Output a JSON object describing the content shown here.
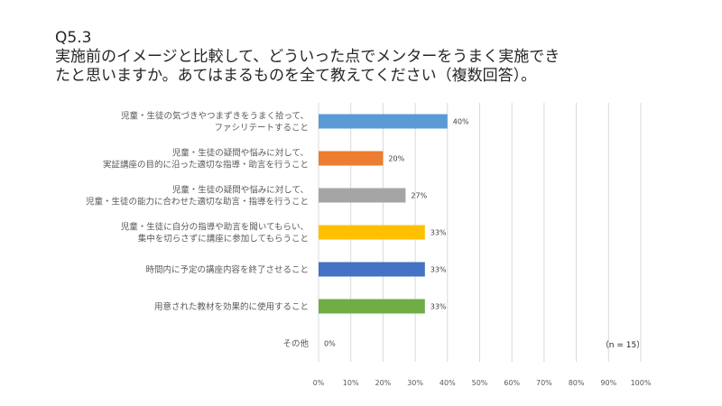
{
  "header": {
    "question_number": "Q5.3",
    "title_lines": [
      "実施前のイメージと比較して、どういった点でメンターをうまく実施でき",
      "たと思いますか。あてはまるものを全て教えてください（複数回答）。"
    ]
  },
  "chart_data": {
    "type": "bar",
    "orientation": "horizontal",
    "title": "",
    "xlabel": "",
    "ylabel": "",
    "categories": [
      [
        "児童・生徒の気づきやつまずきをうまく拾って、",
        "ファシリテートすること"
      ],
      [
        "児童・生徒の疑問や悩みに対して、",
        "実証講座の目的に沿った適切な指導・助言を行うこと"
      ],
      [
        "児童・生徒の疑問や悩みに対して、",
        "児童・生徒の能力に合わせた適切な助言・指導を行うこと"
      ],
      [
        "児童・生徒に自分の指導や助言を聞いてもらい、",
        "集中を切らさずに講座に参加してもらうこと"
      ],
      [
        "時間内に予定の講座内容を終了させること"
      ],
      [
        "用意された教材を効果的に使用すること"
      ],
      [
        "その他"
      ]
    ],
    "values": [
      40,
      20,
      27,
      33,
      33,
      33,
      0
    ],
    "value_labels": [
      "40%",
      "20%",
      "27%",
      "33%",
      "33%",
      "33%",
      "0%"
    ],
    "bar_colors": [
      "#5b9bd5",
      "#ed7d31",
      "#a5a5a5",
      "#ffc000",
      "#4472c4",
      "#70ad47",
      "#5b9bd5"
    ],
    "xlim": [
      0,
      100
    ],
    "xticks": [
      "0%",
      "10%",
      "20%",
      "30%",
      "40%",
      "50%",
      "60%",
      "70%",
      "80%",
      "90%",
      "100%"
    ],
    "grid": true,
    "legend": "none",
    "note": "（n = 15）"
  }
}
